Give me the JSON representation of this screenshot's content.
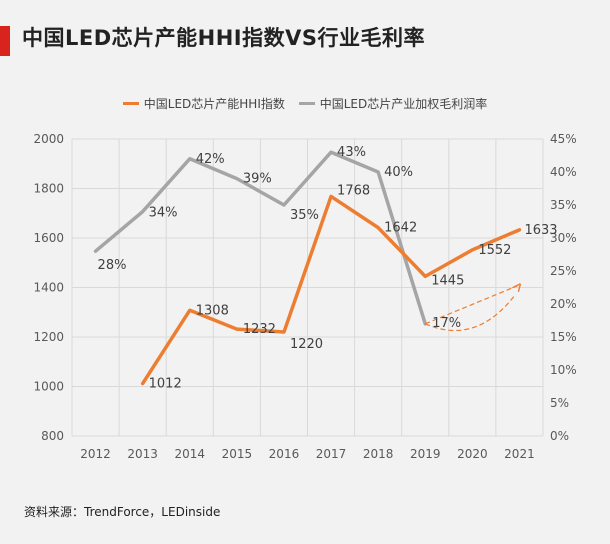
{
  "page": {
    "title": "中国LED芯片产能HHI指数VS行业毛利率",
    "source": "资料来源：TrendForce，LEDinside",
    "accent_color": "#d9231d"
  },
  "chart_data": {
    "type": "line",
    "x": [
      "2012",
      "2013",
      "2014",
      "2015",
      "2016",
      "2017",
      "2018",
      "2019",
      "2020",
      "2021"
    ],
    "y_left": {
      "ylim": [
        800,
        2000
      ],
      "ticks": [
        "800",
        "1000",
        "1200",
        "1400",
        "1600",
        "1800",
        "2000"
      ]
    },
    "y_right": {
      "ylim": [
        0,
        45
      ],
      "ticks": [
        "0%",
        "5%",
        "10%",
        "15%",
        "20%",
        "25%",
        "30%",
        "35%",
        "40%",
        "45%"
      ]
    },
    "series": [
      {
        "name": "中国LED芯片产能HHI指数",
        "axis": "left",
        "color": "#ed7d31",
        "values": [
          null,
          1012,
          1308,
          1232,
          1220,
          1768,
          1642,
          1445,
          1552,
          1633
        ],
        "labels": [
          "",
          "1012",
          "1308",
          "1232",
          "1220",
          "1768",
          "1642",
          "1445",
          "1552",
          "1633"
        ]
      },
      {
        "name": "中国LED芯片产业加权毛利润率",
        "axis": "right",
        "color": "#a5a5a5",
        "values": [
          28,
          34,
          42,
          39,
          35,
          43,
          40,
          17,
          null,
          null
        ],
        "labels": [
          "28%",
          "34%",
          "42%",
          "39%",
          "35%",
          "43%",
          "40%",
          "17%",
          "",
          ""
        ]
      }
    ],
    "annotation": {
      "type": "dashed-arrow",
      "color": "#ed7d31",
      "from_x": "2019",
      "to_x": "2021"
    },
    "grid": true,
    "legend": "top"
  }
}
